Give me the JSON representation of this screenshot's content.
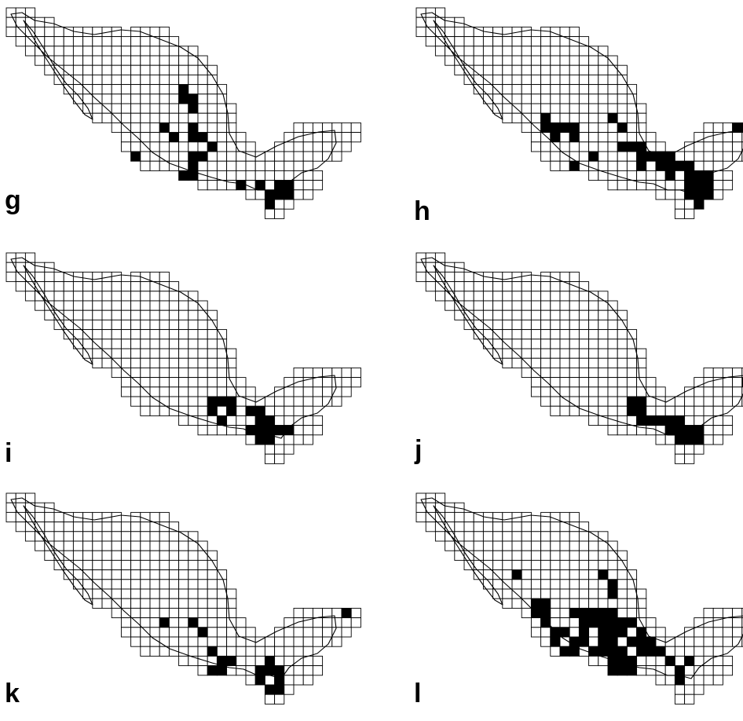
{
  "figure": {
    "colors": {
      "background": "#ffffff",
      "grid_line": "#000000",
      "occupied_cell": "#000000",
      "empty_cell": "#ffffff"
    },
    "panels": [
      {
        "id": "g",
        "label": "g",
        "occupied": [
          [
            18,
            8
          ],
          [
            18,
            9
          ],
          [
            19,
            9
          ],
          [
            19,
            10
          ],
          [
            16,
            12
          ],
          [
            19,
            12
          ],
          [
            17,
            13
          ],
          [
            19,
            13
          ],
          [
            20,
            13
          ],
          [
            21,
            14
          ],
          [
            13,
            15
          ],
          [
            13,
            16
          ],
          [
            19,
            15
          ],
          [
            20,
            15
          ],
          [
            19,
            16
          ],
          [
            18,
            17
          ],
          [
            19,
            17
          ],
          [
            24,
            18
          ],
          [
            26,
            18
          ],
          [
            28,
            18
          ],
          [
            29,
            18
          ],
          [
            27,
            19
          ],
          [
            28,
            19
          ],
          [
            29,
            19
          ],
          [
            27,
            20
          ]
        ]
      },
      {
        "id": "h",
        "label": "h",
        "occupied": [
          [
            13,
            11
          ],
          [
            13,
            12
          ],
          [
            14,
            12
          ],
          [
            15,
            12
          ],
          [
            16,
            12
          ],
          [
            14,
            13
          ],
          [
            16,
            13
          ],
          [
            20,
            11
          ],
          [
            21,
            12
          ],
          [
            21,
            14
          ],
          [
            22,
            14
          ],
          [
            23,
            14
          ],
          [
            23,
            15
          ],
          [
            24,
            15
          ],
          [
            23,
            16
          ],
          [
            25,
            15
          ],
          [
            26,
            15
          ],
          [
            25,
            16
          ],
          [
            26,
            16
          ],
          [
            27,
            16
          ],
          [
            28,
            16
          ],
          [
            26,
            17
          ],
          [
            28,
            17
          ],
          [
            28,
            18
          ],
          [
            29,
            18
          ],
          [
            30,
            18
          ],
          [
            30,
            17
          ],
          [
            29,
            17
          ],
          [
            28,
            19
          ],
          [
            29,
            19
          ],
          [
            30,
            19
          ],
          [
            29,
            20
          ],
          [
            30,
            20
          ],
          [
            33,
            12
          ],
          [
            34,
            12
          ],
          [
            18,
            15
          ],
          [
            16,
            16
          ]
        ]
      },
      {
        "id": "i",
        "label": "i",
        "occupied": [
          [
            21,
            15
          ],
          [
            22,
            15
          ],
          [
            23,
            15
          ],
          [
            21,
            16
          ],
          [
            23,
            16
          ],
          [
            22,
            17
          ],
          [
            25,
            16
          ],
          [
            26,
            16
          ],
          [
            26,
            17
          ],
          [
            27,
            17
          ],
          [
            25,
            18
          ],
          [
            26,
            18
          ],
          [
            27,
            18
          ],
          [
            28,
            18
          ],
          [
            29,
            18
          ],
          [
            26,
            19
          ],
          [
            27,
            19
          ]
        ]
      },
      {
        "id": "j",
        "label": "j",
        "occupied": [
          [
            22,
            15
          ],
          [
            23,
            15
          ],
          [
            22,
            16
          ],
          [
            23,
            16
          ],
          [
            23,
            17
          ],
          [
            24,
            17
          ],
          [
            25,
            17
          ],
          [
            26,
            17
          ],
          [
            27,
            17
          ],
          [
            26,
            18
          ],
          [
            27,
            18
          ],
          [
            28,
            18
          ],
          [
            29,
            18
          ],
          [
            27,
            19
          ],
          [
            28,
            19
          ],
          [
            29,
            19
          ],
          [
            34,
            13
          ],
          [
            35,
            13
          ]
        ]
      },
      {
        "id": "k",
        "label": "k",
        "occupied": [
          [
            16,
            13
          ],
          [
            19,
            13
          ],
          [
            20,
            14
          ],
          [
            13,
            16
          ],
          [
            21,
            16
          ],
          [
            22,
            17
          ],
          [
            23,
            17
          ],
          [
            21,
            18
          ],
          [
            22,
            18
          ],
          [
            17,
            19
          ],
          [
            22,
            19
          ],
          [
            27,
            17
          ],
          [
            26,
            18
          ],
          [
            27,
            18
          ],
          [
            28,
            18
          ],
          [
            26,
            19
          ],
          [
            28,
            19
          ],
          [
            26,
            20
          ],
          [
            27,
            20
          ],
          [
            28,
            20
          ],
          [
            34,
            11
          ],
          [
            35,
            11
          ],
          [
            35,
            12
          ]
        ]
      },
      {
        "id": "l",
        "label": "l",
        "occupied": [
          [
            10,
            8
          ],
          [
            19,
            8
          ],
          [
            20,
            9
          ],
          [
            20,
            10
          ],
          [
            12,
            11
          ],
          [
            13,
            11
          ],
          [
            12,
            12
          ],
          [
            13,
            12
          ],
          [
            13,
            13
          ],
          [
            16,
            12
          ],
          [
            17,
            12
          ],
          [
            18,
            12
          ],
          [
            19,
            12
          ],
          [
            20,
            12
          ],
          [
            17,
            13
          ],
          [
            18,
            13
          ],
          [
            19,
            13
          ],
          [
            20,
            13
          ],
          [
            21,
            13
          ],
          [
            22,
            13
          ],
          [
            14,
            14
          ],
          [
            15,
            14
          ],
          [
            17,
            14
          ],
          [
            19,
            14
          ],
          [
            20,
            14
          ],
          [
            21,
            14
          ],
          [
            23,
            14
          ],
          [
            14,
            15
          ],
          [
            16,
            15
          ],
          [
            17,
            15
          ],
          [
            19,
            15
          ],
          [
            20,
            15
          ],
          [
            22,
            15
          ],
          [
            23,
            15
          ],
          [
            24,
            15
          ],
          [
            15,
            16
          ],
          [
            16,
            16
          ],
          [
            18,
            16
          ],
          [
            19,
            16
          ],
          [
            20,
            16
          ],
          [
            21,
            16
          ],
          [
            23,
            16
          ],
          [
            24,
            16
          ],
          [
            25,
            16
          ],
          [
            20,
            17
          ],
          [
            21,
            17
          ],
          [
            22,
            17
          ],
          [
            26,
            17
          ],
          [
            28,
            17
          ],
          [
            20,
            18
          ],
          [
            21,
            18
          ],
          [
            22,
            18
          ],
          [
            27,
            18
          ],
          [
            27,
            19
          ]
        ]
      }
    ]
  }
}
